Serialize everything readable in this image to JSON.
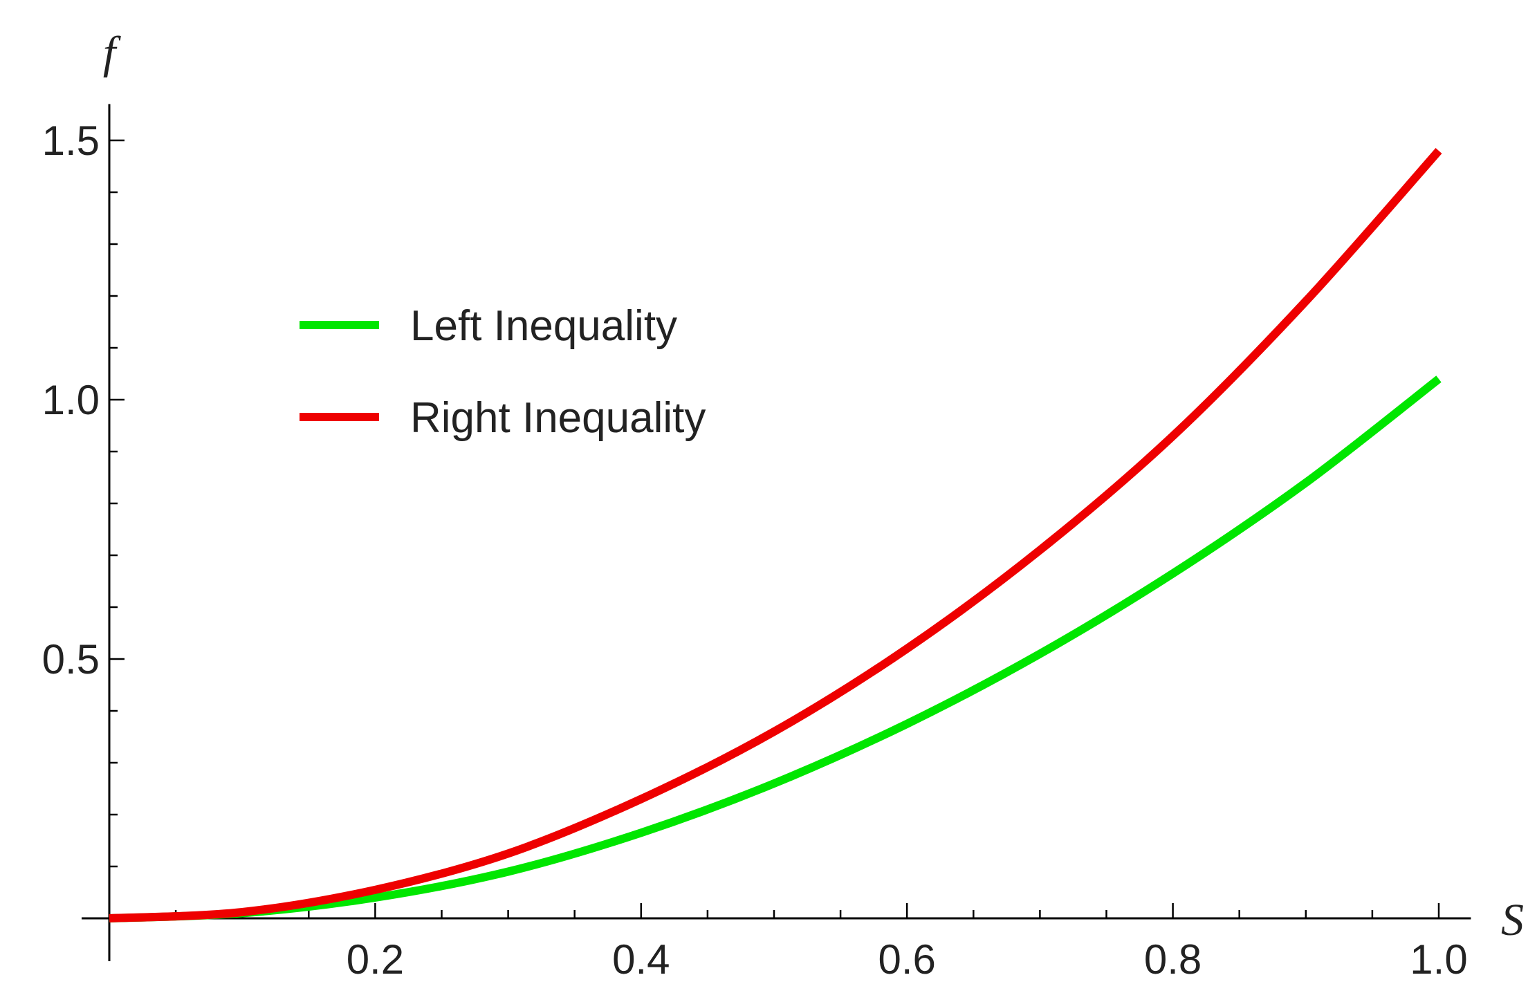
{
  "chart_data": {
    "type": "line",
    "title": "",
    "xlabel": "S",
    "ylabel": "f",
    "xlim": [
      0,
      1.02
    ],
    "ylim": [
      -0.02,
      1.57
    ],
    "x_ticks": [
      {
        "value": 0.2,
        "label": "0.2"
      },
      {
        "value": 0.4,
        "label": "0.4"
      },
      {
        "value": 0.6,
        "label": "0.6"
      },
      {
        "value": 0.8,
        "label": "0.8"
      },
      {
        "value": 1.0,
        "label": "1.0"
      }
    ],
    "y_ticks": [
      {
        "value": 0.5,
        "label": "0.5"
      },
      {
        "value": 1.0,
        "label": "1.0"
      },
      {
        "value": 1.5,
        "label": "1.5"
      }
    ],
    "x_minor_step": 0.05,
    "y_minor_step": 0.1,
    "grid": false,
    "legend_position": "upper-left",
    "series": [
      {
        "name": "Left Inequality",
        "color": "#00e600",
        "x": [
          0,
          0.1,
          0.2,
          0.3,
          0.4,
          0.5,
          0.6,
          0.7,
          0.8,
          0.9,
          1.0
        ],
        "y": [
          0,
          0.01,
          0.04,
          0.09,
          0.165,
          0.26,
          0.375,
          0.51,
          0.665,
          0.84,
          1.04
        ]
      },
      {
        "name": "Right Inequality",
        "color": "#ee0000",
        "x": [
          0,
          0.1,
          0.2,
          0.3,
          0.4,
          0.5,
          0.6,
          0.7,
          0.8,
          0.9,
          1.0
        ],
        "y": [
          0,
          0.012,
          0.055,
          0.125,
          0.23,
          0.36,
          0.52,
          0.71,
          0.93,
          1.19,
          1.48
        ]
      }
    ]
  }
}
